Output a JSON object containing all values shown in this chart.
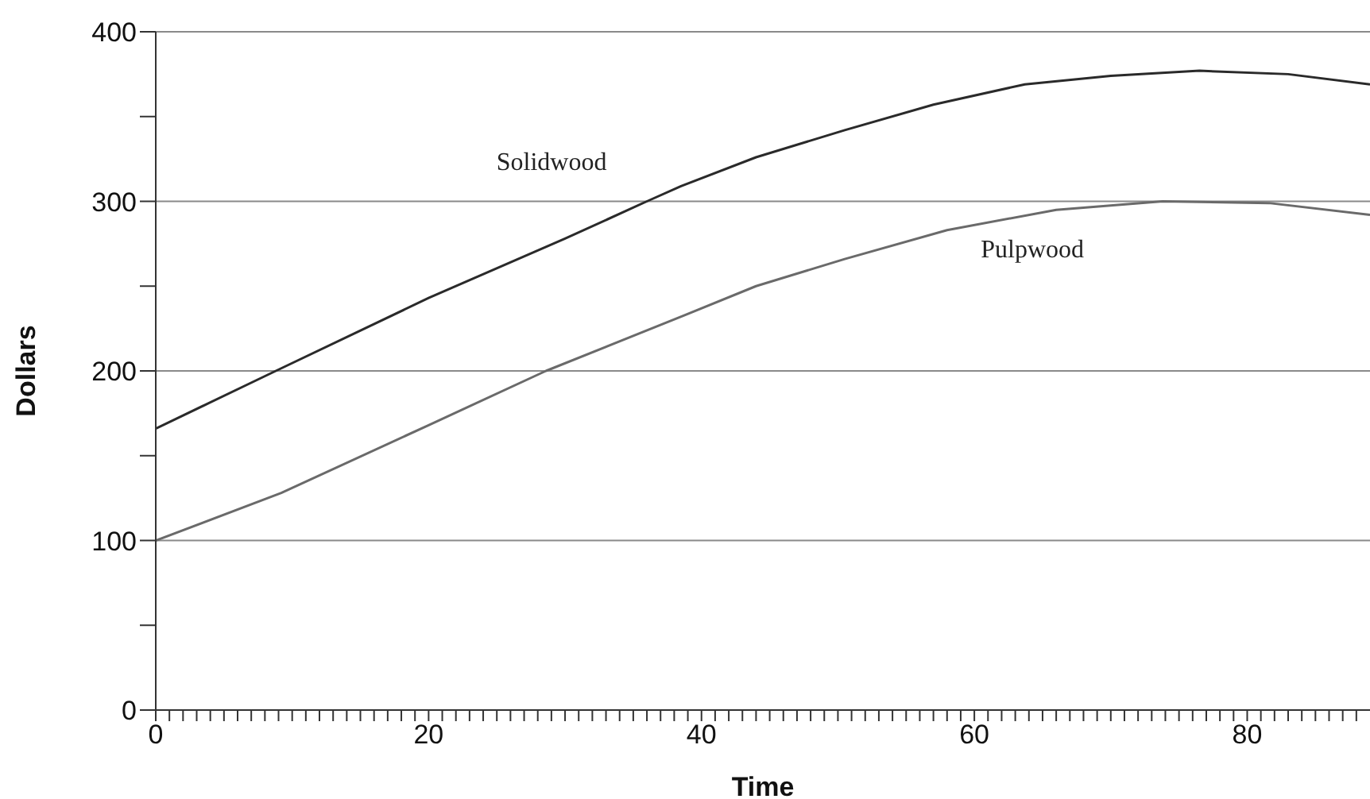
{
  "chart_data": {
    "type": "line",
    "xlabel": "Time",
    "ylabel": "Dollars",
    "series": [
      {
        "name": "Solidwood",
        "color": "#2a2a2a",
        "x": [
          0,
          8.8,
          20,
          30,
          36,
          38.5,
          44,
          50.5,
          57,
          63.7,
          70,
          76.5,
          83,
          89
        ],
        "values": [
          166,
          200,
          243,
          278,
          300,
          309,
          326,
          342,
          357,
          369,
          374,
          377,
          375,
          369
        ]
      },
      {
        "name": "Pulpwood",
        "color": "#6a6a6a",
        "x": [
          0,
          9.2,
          20,
          28.6,
          38.8,
          44,
          50.5,
          58,
          66,
          73.8,
          81.6,
          89
        ],
        "values": [
          100,
          128,
          168,
          200,
          233,
          250,
          266,
          283,
          295,
          300,
          299,
          292
        ]
      }
    ],
    "xlim": [
      0,
      89
    ],
    "xticks": [
      0,
      {
        "value": 1,
        "label": null
      },
      {
        "value": 2,
        "label": null
      },
      {
        "value": 3,
        "label": null
      },
      {
        "value": 4,
        "label": null
      },
      {
        "value": 5,
        "label": null
      },
      {
        "value": 6,
        "label": null
      },
      {
        "value": 7,
        "label": null
      },
      {
        "value": 8,
        "label": null
      },
      {
        "value": 9,
        "label": null
      },
      {
        "value": 10,
        "label": null
      },
      {
        "value": 11,
        "label": null
      },
      {
        "value": 12,
        "label": null
      },
      {
        "value": 13,
        "label": null
      },
      {
        "value": 14,
        "label": null
      },
      {
        "value": 15,
        "label": null
      },
      {
        "value": 16,
        "label": null
      },
      {
        "value": 17,
        "label": null
      },
      {
        "value": 18,
        "label": null
      },
      {
        "value": 19,
        "label": null
      },
      20,
      {
        "value": 21,
        "label": null
      },
      {
        "value": 22,
        "label": null
      },
      {
        "value": 23,
        "label": null
      },
      {
        "value": 24,
        "label": null
      },
      {
        "value": 25,
        "label": null
      },
      {
        "value": 26,
        "label": null
      },
      {
        "value": 27,
        "label": null
      },
      {
        "value": 28,
        "label": null
      },
      {
        "value": 29,
        "label": null
      },
      {
        "value": 30,
        "label": null
      },
      {
        "value": 31,
        "label": null
      },
      {
        "value": 32,
        "label": null
      },
      {
        "value": 33,
        "label": null
      },
      {
        "value": 34,
        "label": null
      },
      {
        "value": 35,
        "label": null
      },
      {
        "value": 36,
        "label": null
      },
      {
        "value": 37,
        "label": null
      },
      {
        "value": 38,
        "label": null
      },
      {
        "value": 39,
        "label": null
      },
      40,
      {
        "value": 41,
        "label": null
      },
      {
        "value": 42,
        "label": null
      },
      {
        "value": 43,
        "label": null
      },
      {
        "value": 44,
        "label": null
      },
      {
        "value": 45,
        "label": null
      },
      {
        "value": 46,
        "label": null
      },
      {
        "value": 47,
        "label": null
      },
      {
        "value": 48,
        "label": null
      },
      {
        "value": 49,
        "label": null
      },
      {
        "value": 50,
        "label": null
      },
      {
        "value": 51,
        "label": null
      },
      {
        "value": 52,
        "label": null
      },
      {
        "value": 53,
        "label": null
      },
      {
        "value": 54,
        "label": null
      },
      {
        "value": 55,
        "label": null
      },
      {
        "value": 56,
        "label": null
      },
      {
        "value": 57,
        "label": null
      },
      {
        "value": 58,
        "label": null
      },
      {
        "value": 59,
        "label": null
      },
      60,
      {
        "value": 61,
        "label": null
      },
      {
        "value": 62,
        "label": null
      },
      {
        "value": 63,
        "label": null
      },
      {
        "value": 64,
        "label": null
      },
      {
        "value": 65,
        "label": null
      },
      {
        "value": 66,
        "label": null
      },
      {
        "value": 67,
        "label": null
      },
      {
        "value": 68,
        "label": null
      },
      {
        "value": 69,
        "label": null
      },
      {
        "value": 70,
        "label": null
      },
      {
        "value": 71,
        "label": null
      },
      {
        "value": 72,
        "label": null
      },
      {
        "value": 73,
        "label": null
      },
      {
        "value": 74,
        "label": null
      },
      {
        "value": 75,
        "label": null
      },
      {
        "value": 76,
        "label": null
      },
      {
        "value": 77,
        "label": null
      },
      {
        "value": 78,
        "label": null
      },
      {
        "value": 79,
        "label": null
      },
      80,
      {
        "value": 81,
        "label": null
      },
      {
        "value": 82,
        "label": null
      },
      {
        "value": 83,
        "label": null
      },
      {
        "value": 84,
        "label": null
      },
      {
        "value": 85,
        "label": null
      },
      {
        "value": 86,
        "label": null
      },
      {
        "value": 87,
        "label": null
      },
      {
        "value": 88,
        "label": null
      }
    ],
    "ylim": [
      0,
      400
    ],
    "yticks": [
      0,
      {
        "value": 50,
        "label": null
      },
      100,
      {
        "value": 150,
        "label": null
      },
      200,
      {
        "value": 250,
        "label": null
      },
      300,
      {
        "value": 350,
        "label": null
      },
      400
    ],
    "grid": "y",
    "legend": false,
    "marker": "none",
    "line_style": "solid"
  }
}
